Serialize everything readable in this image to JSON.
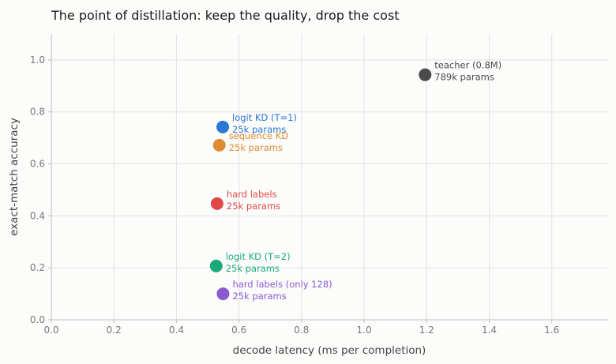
{
  "chart_data": {
    "type": "scatter",
    "title": "The point of distillation: keep the quality, drop the cost",
    "xlabel": "decode latency (ms per completion)",
    "ylabel": "exact-match accuracy",
    "xlim": [
      0.0,
      1.78
    ],
    "ylim": [
      0.0,
      1.1
    ],
    "xticks": [
      "0.0",
      "0.2",
      "0.4",
      "0.6",
      "0.8",
      "1.0",
      "1.2",
      "1.4",
      "1.6"
    ],
    "yticks": [
      "0.0",
      "0.2",
      "0.4",
      "0.6",
      "0.8",
      "1.0"
    ],
    "grid": true,
    "points": [
      {
        "label": "teacher (0.8M)",
        "sublabel": "789k params",
        "x": 1.195,
        "y": 0.943,
        "color": "#4a4a4a"
      },
      {
        "label": "logit KD (T=1)",
        "sublabel": "25k params",
        "x": 0.548,
        "y": 0.742,
        "color": "#2a78d4"
      },
      {
        "label": "sequence KD",
        "sublabel": "25k params",
        "x": 0.537,
        "y": 0.672,
        "color": "#e08a35"
      },
      {
        "label": "hard labels",
        "sublabel": "25k params",
        "x": 0.53,
        "y": 0.447,
        "color": "#e04848"
      },
      {
        "label": "logit KD (T=2)",
        "sublabel": "25k params",
        "x": 0.527,
        "y": 0.207,
        "color": "#1aaa7a"
      },
      {
        "label": "hard labels (only 128)",
        "sublabel": "25k params",
        "x": 0.549,
        "y": 0.1,
        "color": "#8a5ad2"
      }
    ]
  }
}
